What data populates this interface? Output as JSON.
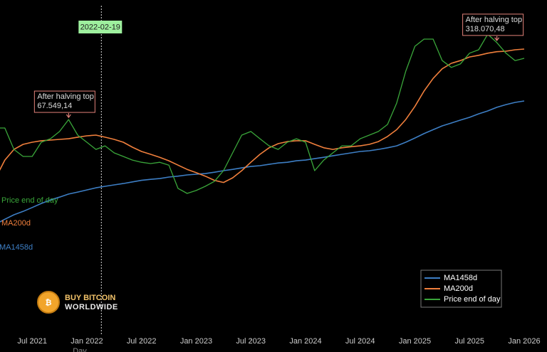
{
  "chart_data": {
    "type": "line",
    "x": [
      "2021-03",
      "2021-04",
      "2021-05",
      "2021-06",
      "2021-07",
      "2021-08",
      "2021-09",
      "2021-10",
      "2021-11",
      "2021-12",
      "2022-01",
      "2022-02",
      "2022-03",
      "2022-04",
      "2022-05",
      "2022-06",
      "2022-07",
      "2022-08",
      "2022-09",
      "2022-10",
      "2022-11",
      "2022-12",
      "2023-01",
      "2023-02",
      "2023-03",
      "2023-04",
      "2023-05",
      "2023-06",
      "2023-07",
      "2023-08",
      "2023-09",
      "2023-10",
      "2023-11",
      "2023-12",
      "2024-01",
      "2024-02",
      "2024-03",
      "2024-04",
      "2024-05",
      "2024-06",
      "2024-07",
      "2024-08",
      "2024-09",
      "2024-10",
      "2024-11",
      "2024-12",
      "2025-01",
      "2025-02",
      "2025-03",
      "2025-04",
      "2025-05",
      "2025-06",
      "2025-07",
      "2025-08",
      "2025-09",
      "2025-10",
      "2025-11",
      "2025-12",
      "2026-01"
    ],
    "series": [
      {
        "name": "MA1458d",
        "color": "#3d7ec4",
        "values": [
          9610,
          10500,
          11400,
          12100,
          13000,
          14000,
          14900,
          15700,
          16600,
          17200,
          17900,
          18600,
          19100,
          19600,
          20100,
          20700,
          21300,
          21700,
          22000,
          22600,
          23000,
          23500,
          23800,
          24100,
          24700,
          25400,
          26000,
          26700,
          27400,
          27800,
          28500,
          29200,
          29600,
          30400,
          30800,
          31600,
          32400,
          33300,
          34200,
          35100,
          36000,
          36500,
          37400,
          38500,
          39900,
          42600,
          46000,
          49800,
          53500,
          57400,
          60400,
          63700,
          67000,
          71400,
          75300,
          80400,
          84500,
          87900,
          90200
        ]
      },
      {
        "name": "MA200d",
        "color": "#f07f3c",
        "values": [
          22300,
          30800,
          37400,
          41000,
          42600,
          43800,
          44300,
          44900,
          45400,
          46700,
          47900,
          48500,
          46700,
          44900,
          42600,
          38900,
          36000,
          34200,
          32400,
          30400,
          28100,
          26000,
          24500,
          23000,
          21300,
          20500,
          22300,
          25400,
          29600,
          34200,
          38500,
          41500,
          43100,
          43800,
          43800,
          41000,
          38500,
          37400,
          38500,
          39300,
          39900,
          41000,
          43100,
          47300,
          53500,
          64400,
          81700,
          108000,
          136000,
          162000,
          179000,
          188000,
          201000,
          207000,
          215000,
          221000,
          223000,
          229000,
          232000
        ]
      },
      {
        "name": "Price end of day",
        "color": "#3aa63a",
        "values": [
          55200,
          55200,
          37400,
          32900,
          32900,
          42600,
          45400,
          51800,
          64400,
          48500,
          42600,
          37400,
          39900,
          35100,
          32900,
          30800,
          29600,
          28900,
          29600,
          28100,
          18400,
          16800,
          17700,
          19100,
          20900,
          25400,
          35100,
          48500,
          51800,
          45400,
          39900,
          37400,
          42600,
          45400,
          42600,
          25400,
          30800,
          35100,
          39900,
          39900,
          45400,
          48500,
          51800,
          58900,
          86700,
          155000,
          244000,
          278000,
          278000,
          188000,
          166000,
          177000,
          215000,
          229000,
          304000,
          261000,
          215000,
          188000,
          196000
        ]
      }
    ],
    "xlim": [
      "2021-03",
      "2026-01"
    ],
    "ylim": [
      1140,
      566000
    ],
    "log_scale": true,
    "xticks": [
      {
        "value": "2021-07",
        "label": "Jul 2021"
      },
      {
        "value": "2022-01",
        "label": "Jan 2022"
      },
      {
        "value": "2022-07",
        "label": "Jul 2022"
      },
      {
        "value": "2023-01",
        "label": "Jan 2023"
      },
      {
        "value": "2023-07",
        "label": "Jul 2023"
      },
      {
        "value": "2024-01",
        "label": "Jan 2024"
      },
      {
        "value": "2024-07",
        "label": "Jul 2024"
      },
      {
        "value": "2025-01",
        "label": "Jan 2025"
      },
      {
        "value": "2025-07",
        "label": "Jul 2025"
      },
      {
        "value": "2026-01",
        "label": "Jan 2026"
      }
    ],
    "x_label": "Day",
    "marker_date": "2022-02-19",
    "annotations": [
      {
        "x": "2021-11",
        "title": "After halving top",
        "text": "67.549,14"
      },
      {
        "x": "2025-10",
        "title": "After halving top",
        "text": "318.070,48"
      }
    ],
    "legend": "lower right",
    "logo": {
      "line1": "BUY BITCOIN",
      "line2": "WORLDWIDE"
    }
  }
}
